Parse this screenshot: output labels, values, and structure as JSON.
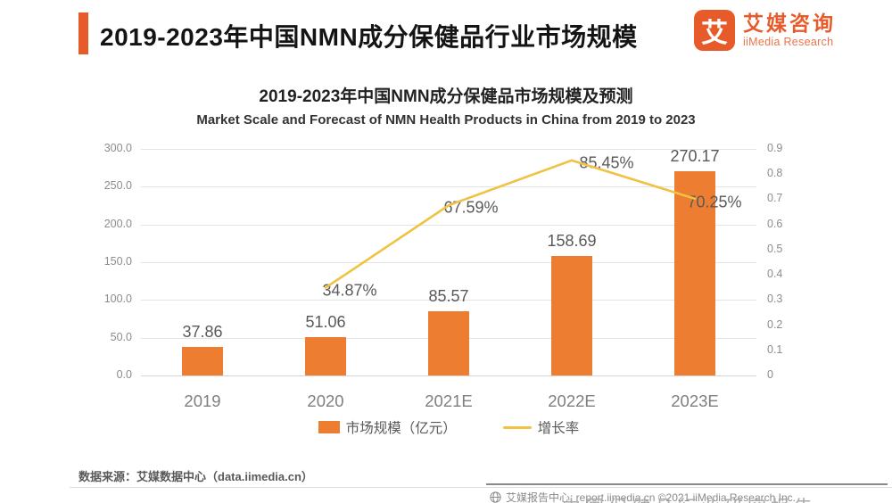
{
  "header": {
    "title": "2019-2023年中国NMN成分保健品行业市场规模",
    "logo": {
      "icon_char": "艾",
      "name_cn": "艾媒咨询",
      "name_en": "iiMedia Research"
    }
  },
  "chart_data": {
    "type": "bar+line",
    "title": "2019-2023年中国NMN成分保健品市场规模及预测",
    "subtitle": "Market Scale and Forecast of NMN Health Products in China from 2019 to 2023",
    "categories": [
      "2019",
      "2020",
      "2021E",
      "2022E",
      "2023E"
    ],
    "series": [
      {
        "name": "市场规模（亿元）",
        "type": "bar",
        "color": "#ED7D31",
        "values": [
          37.86,
          51.06,
          85.57,
          158.69,
          270.17
        ],
        "labels": [
          "37.86",
          "51.06",
          "85.57",
          "158.69",
          "270.17"
        ]
      },
      {
        "name": "增长率",
        "type": "line",
        "color": "#F0C242",
        "values": [
          null,
          0.3487,
          0.6759,
          0.8545,
          0.7025
        ],
        "labels": [
          null,
          "34.87%",
          "67.59%",
          "85.45%",
          "70.25%"
        ]
      }
    ],
    "left_axis": {
      "ticks": [
        "300.0",
        "250.0",
        "200.0",
        "150.0",
        "100.0",
        "50.0",
        "0.0"
      ],
      "min": 0,
      "max": 300
    },
    "right_axis": {
      "ticks": [
        "0.9",
        "0.8",
        "0.7",
        "0.6",
        "0.5",
        "0.4",
        "0.3",
        "0.2",
        "0.1",
        "0"
      ],
      "min": 0,
      "max": 0.9
    },
    "legend": [
      {
        "label": "市场规模（亿元）",
        "swatch": "bar",
        "color": "#ED7D31"
      },
      {
        "label": "增长率",
        "swatch": "line",
        "color": "#F0C242"
      }
    ],
    "grid": true,
    "legend_position": "bottom"
  },
  "footer": {
    "source": "数据来源：艾媒数据中心（data.iimedia.cn）",
    "report_center": "艾媒报告中心: report.iimedia.cn  ©2021  iiMedia Research  Inc.",
    "clipped_fragment": "中国保健品行业研究报告"
  },
  "colors": {
    "accent": "#E75B2B",
    "bar": "#ED7D31",
    "line": "#F0C242"
  }
}
